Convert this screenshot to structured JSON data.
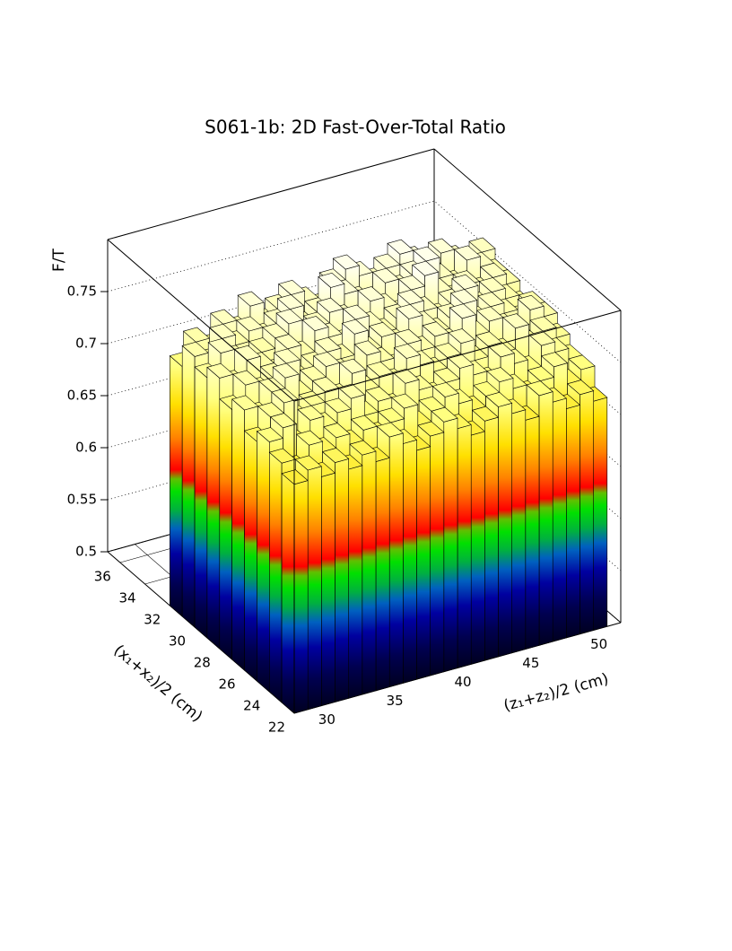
{
  "chart_data": {
    "type": "lego",
    "title": "S061-1b: 2D Fast-Over-Total Ratio",
    "xlabel": "(z₁+z₂)/2 (cm)",
    "ylabel": "(x₁+x₂)/2 (cm)",
    "zlabel": "F/T",
    "xlim": [
      28,
      52
    ],
    "ylim": [
      22,
      37
    ],
    "zlim": [
      0.5,
      0.8
    ],
    "xticks": [
      30,
      35,
      40,
      45,
      50
    ],
    "yticks": [
      22,
      24,
      26,
      28,
      30,
      32,
      34,
      36
    ],
    "zticks": [
      0.5,
      0.55,
      0.6,
      0.65,
      0.7,
      0.75
    ],
    "xbins": [
      28,
      29,
      30,
      31,
      32,
      33,
      34,
      35,
      36,
      37,
      38,
      39,
      40,
      41,
      42,
      43,
      44,
      45,
      46,
      47,
      48,
      49,
      50,
      51
    ],
    "ybins": [
      22,
      23,
      24,
      25,
      26,
      27,
      28,
      29,
      30,
      31,
      32
    ],
    "values": [
      [
        0.72,
        0.73,
        0.72,
        0.73,
        0.72,
        0.73,
        0.72,
        0.74,
        0.73,
        0.72,
        0.73,
        0.74,
        0.73,
        0.72,
        0.73,
        0.74,
        0.73,
        0.72,
        0.74,
        0.73,
        0.72,
        0.73,
        0.72
      ],
      [
        0.73,
        0.72,
        0.74,
        0.73,
        0.74,
        0.73,
        0.74,
        0.73,
        0.74,
        0.75,
        0.73,
        0.74,
        0.75,
        0.74,
        0.73,
        0.74,
        0.75,
        0.74,
        0.73,
        0.74,
        0.75,
        0.73,
        0.74
      ],
      [
        0.74,
        0.75,
        0.73,
        0.75,
        0.74,
        0.75,
        0.76,
        0.74,
        0.75,
        0.74,
        0.76,
        0.75,
        0.74,
        0.75,
        0.76,
        0.75,
        0.74,
        0.76,
        0.75,
        0.74,
        0.76,
        0.75,
        0.74
      ],
      [
        0.73,
        0.75,
        0.76,
        0.74,
        0.75,
        0.76,
        0.75,
        0.77,
        0.75,
        0.76,
        0.75,
        0.77,
        0.76,
        0.75,
        0.76,
        0.77,
        0.75,
        0.76,
        0.75,
        0.77,
        0.75,
        0.76,
        0.75
      ],
      [
        0.75,
        0.74,
        0.76,
        0.77,
        0.75,
        0.76,
        0.77,
        0.76,
        0.75,
        0.77,
        0.76,
        0.75,
        0.77,
        0.76,
        0.77,
        0.76,
        0.78,
        0.76,
        0.77,
        0.76,
        0.75,
        0.77,
        0.76
      ],
      [
        0.74,
        0.76,
        0.75,
        0.76,
        0.77,
        0.75,
        0.76,
        0.77,
        0.76,
        0.78,
        0.76,
        0.77,
        0.76,
        0.78,
        0.77,
        0.76,
        0.77,
        0.78,
        0.76,
        0.77,
        0.76,
        0.75,
        0.76
      ],
      [
        0.76,
        0.75,
        0.77,
        0.76,
        0.75,
        0.77,
        0.76,
        0.78,
        0.77,
        0.76,
        0.78,
        0.77,
        0.76,
        0.77,
        0.78,
        0.77,
        0.76,
        0.77,
        0.78,
        0.76,
        0.77,
        0.76,
        0.75
      ],
      [
        0.75,
        0.77,
        0.76,
        0.74,
        0.76,
        0.77,
        0.78,
        0.76,
        0.77,
        0.78,
        0.77,
        0.76,
        0.78,
        0.77,
        0.76,
        0.78,
        0.79,
        0.77,
        0.76,
        0.77,
        0.76,
        0.77,
        0.76
      ],
      [
        0.76,
        0.75,
        0.77,
        0.76,
        0.77,
        0.76,
        0.77,
        0.78,
        0.76,
        0.77,
        0.79,
        0.78,
        0.77,
        0.76,
        0.78,
        0.77,
        0.78,
        0.79,
        0.77,
        0.76,
        0.78,
        0.77,
        0.76
      ],
      [
        0.74,
        0.76,
        0.75,
        0.77,
        0.76,
        0.78,
        0.76,
        0.77,
        0.78,
        0.77,
        0.76,
        0.78,
        0.79,
        0.78,
        0.77,
        0.78,
        0.79,
        0.78,
        0.77,
        0.78,
        0.77,
        0.76,
        0.77
      ]
    ]
  }
}
